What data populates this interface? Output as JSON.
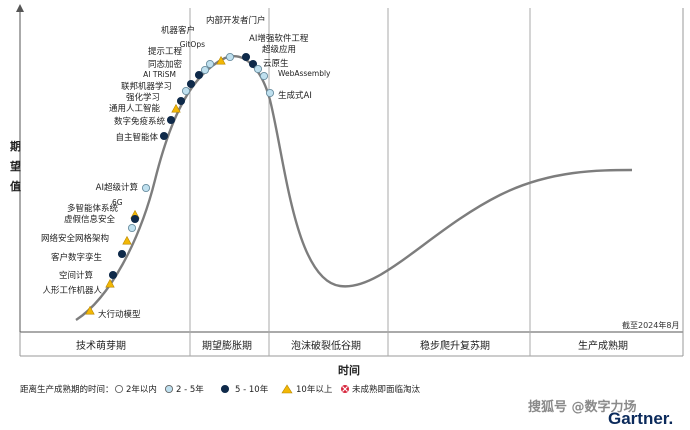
{
  "chart_data": {
    "type": "scatter",
    "title": "",
    "xlabel": "时间",
    "ylabel": "期望值",
    "as_of": "截至2024年8月",
    "phases": [
      "技术萌芽期",
      "期望膨胀期",
      "泡沫破裂低谷期",
      "稳步爬升复苏期",
      "生产成熟期"
    ],
    "legend": {
      "title": "距离生产成熟期的时间：",
      "items": [
        {
          "key": "lt2",
          "label": "2年以内",
          "color": "#ffffff"
        },
        {
          "key": "2to5",
          "label": "2 - 5年",
          "color": "#bfe0ef"
        },
        {
          "key": "5to10",
          "label": "5 - 10年",
          "color": "#0f2a4a"
        },
        {
          "key": "gt10",
          "label": "10年以上",
          "color": "#f2b705"
        },
        {
          "key": "obsolete",
          "label": "未成熟即面临淘汰",
          "color": "#d7263d"
        }
      ]
    },
    "points": [
      {
        "label": "大行动模型",
        "category": "gt10"
      },
      {
        "label": "人形工作机器人",
        "category": "gt10"
      },
      {
        "label": "空间计算",
        "category": "5to10"
      },
      {
        "label": "客户数字孪生",
        "category": "5to10"
      },
      {
        "label": "网络安全网格架构",
        "category": "gt10"
      },
      {
        "label": "虚假信息安全",
        "category": "2to5"
      },
      {
        "label": "6G",
        "category": "gt10"
      },
      {
        "label": "多智能体系统",
        "category": "5to10"
      },
      {
        "label": "AI超级计算",
        "category": "2to5"
      },
      {
        "label": "自主智能体",
        "category": "5to10"
      },
      {
        "label": "数字免疫系统",
        "category": "5to10"
      },
      {
        "label": "通用人工智能",
        "category": "gt10"
      },
      {
        "label": "强化学习",
        "category": "5to10"
      },
      {
        "label": "联邦机器学习",
        "category": "2to5"
      },
      {
        "label": "AI TRiSM",
        "category": "5to10"
      },
      {
        "label": "同态加密",
        "category": "5to10"
      },
      {
        "label": "提示工程",
        "category": "2to5"
      },
      {
        "label": "GitOps",
        "category": "2to5"
      },
      {
        "label": "机器客户",
        "category": "gt10"
      },
      {
        "label": "内部开发者门户",
        "category": "2to5"
      },
      {
        "label": "AI增强软件工程",
        "category": "5to10"
      },
      {
        "label": "超级应用",
        "category": "5to10"
      },
      {
        "label": "云原生",
        "category": "2to5"
      },
      {
        "label": "WebAssembly",
        "category": "2to5"
      },
      {
        "label": "生成式AI",
        "category": "2to5"
      }
    ]
  },
  "watermark": "搜狐号 @数字力场",
  "brand": "Gartner."
}
